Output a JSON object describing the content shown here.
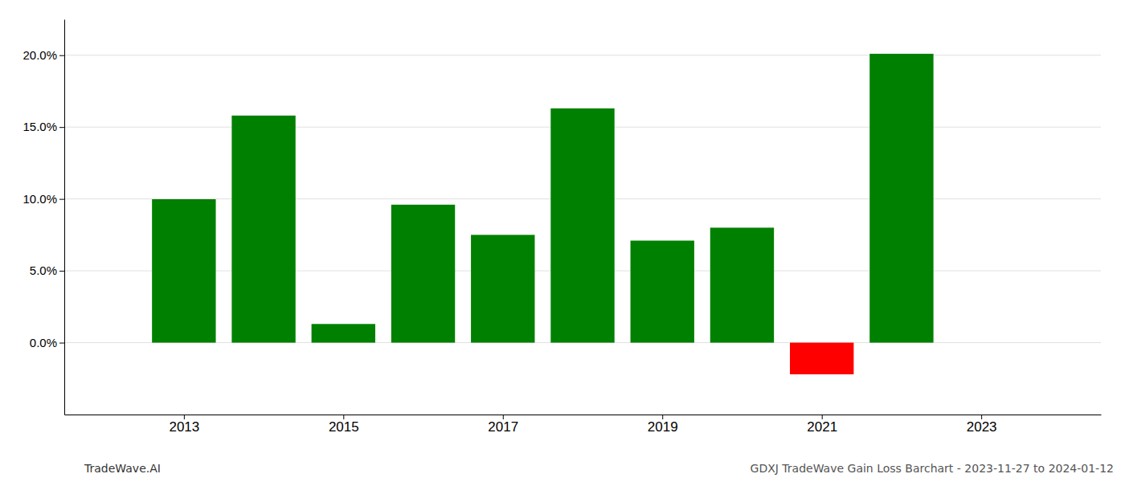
{
  "chart_data": {
    "type": "bar",
    "x": [
      2013,
      2014,
      2015,
      2016,
      2017,
      2018,
      2019,
      2020,
      2021,
      2022
    ],
    "values": [
      0.0998,
      0.158,
      0.013,
      0.096,
      0.075,
      0.163,
      0.071,
      0.08,
      -0.022,
      0.201
    ],
    "colors": [
      "#008000",
      "#008000",
      "#008000",
      "#008000",
      "#008000",
      "#008000",
      "#008000",
      "#008000",
      "#ff0000",
      "#008000"
    ],
    "xlim": [
      2011.5,
      2024.5
    ],
    "xticks": [
      2013,
      2015,
      2017,
      2019,
      2021,
      2023
    ],
    "ylim": [
      -0.05,
      0.225
    ],
    "yticks": [
      {
        "value": 0.0,
        "label": "0.0%"
      },
      {
        "value": 0.05,
        "label": "5.0%"
      },
      {
        "value": 0.1,
        "label": "10.0%"
      },
      {
        "value": 0.15,
        "label": "15.0%"
      },
      {
        "value": 0.2,
        "label": "20.0%"
      }
    ],
    "grid": true,
    "annotations": [
      "TradeWave.AI",
      "GDXJ TradeWave Gain Loss Barchart - 2023-11-27 to 2024-01-12"
    ]
  }
}
